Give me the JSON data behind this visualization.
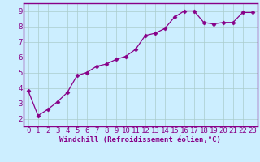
{
  "x_values": [
    0,
    1,
    2,
    3,
    4,
    5,
    6,
    7,
    8,
    9,
    10,
    11,
    12,
    13,
    14,
    15,
    16,
    17,
    18,
    19,
    20,
    21,
    22,
    23
  ],
  "y_values": [
    3.8,
    2.2,
    2.6,
    3.1,
    3.7,
    4.8,
    5.0,
    5.4,
    5.55,
    5.85,
    6.05,
    6.5,
    7.4,
    7.55,
    7.85,
    8.6,
    9.0,
    9.0,
    8.25,
    8.15,
    8.25,
    8.25,
    8.9,
    8.9
  ],
  "line_color": "#880088",
  "marker": "D",
  "marker_size": 2.5,
  "bg_color": "#cceeff",
  "grid_color": "#aacccc",
  "xlabel": "Windchill (Refroidissement éolien,°C)",
  "xlim": [
    -0.5,
    23.5
  ],
  "ylim": [
    1.5,
    9.5
  ],
  "xticks": [
    0,
    1,
    2,
    3,
    4,
    5,
    6,
    7,
    8,
    9,
    10,
    11,
    12,
    13,
    14,
    15,
    16,
    17,
    18,
    19,
    20,
    21,
    22,
    23
  ],
  "yticks": [
    2,
    3,
    4,
    5,
    6,
    7,
    8,
    9
  ],
  "tick_color": "#880088",
  "spine_color": "#880088",
  "label_color": "#880088",
  "font_size_xlabel": 6.5,
  "font_size_tick": 6.5
}
